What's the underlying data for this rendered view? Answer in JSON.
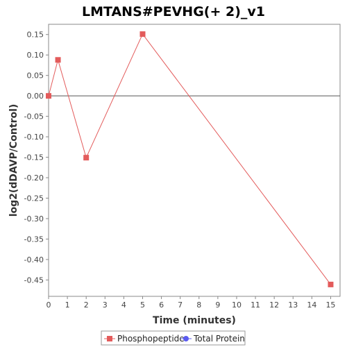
{
  "chart_data": {
    "type": "line",
    "title": "LMTANS#PEVHG(+ 2)_v1",
    "xlabel": "Time (minutes)",
    "ylabel": "log2(dDAVP/Control)",
    "xlim": [
      0,
      15.5
    ],
    "ylim": [
      -0.49,
      0.175
    ],
    "x_ticks": [
      0,
      1,
      2,
      3,
      4,
      5,
      6,
      7,
      8,
      9,
      10,
      11,
      12,
      13,
      14,
      15
    ],
    "y_ticks": [
      0.15,
      0.1,
      0.05,
      0.0,
      -0.05,
      -0.1,
      -0.15,
      -0.2,
      -0.25,
      -0.3,
      -0.35,
      -0.4,
      -0.45
    ],
    "y_tick_labels": [
      "0.15",
      "0.10",
      "0.05",
      "0.00",
      "-0.05",
      "-0.10",
      "-0.15",
      "-0.20",
      "-0.25",
      "-0.30",
      "-0.35",
      "-0.40",
      "-0.45"
    ],
    "zero_line": true,
    "grid": false,
    "legend_position": "bottom",
    "series": [
      {
        "name": "Phosphopeptide",
        "color": "#e35b5b",
        "marker": "square",
        "x": [
          0,
          0.5,
          2,
          5,
          15
        ],
        "y": [
          0.0,
          0.088,
          -0.151,
          0.151,
          -0.461
        ]
      },
      {
        "name": "Total Protein",
        "color": "#5b5bf0",
        "marker": "circle",
        "x": [],
        "y": []
      }
    ]
  }
}
